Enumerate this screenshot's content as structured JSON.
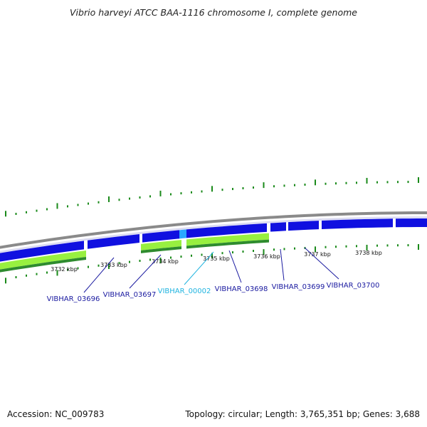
{
  "title": "Vibrio harveyi ATCC BAA-1116 chromosome I, complete genome",
  "footer": {
    "accession": "Accession: NC_009783",
    "stats": "Topology: circular; Length: 3,765,351 bp; Genes: 3,688"
  },
  "colors": {
    "backbone": "#8a8a8a",
    "cds_forward": "#1010e0",
    "cds_highlight": "#29a8ff",
    "feature_light": "#98f040",
    "feature_dark": "#2e8b2e",
    "ticks": "#1a8a1a",
    "label_normal": "#1a1aa0",
    "label_highlight": "#20b4e0"
  },
  "scale_labels": [
    "3732 kbp",
    "3733 kbp",
    "3734 kbp",
    "3735 kbp",
    "3736 kbp",
    "3737 kbp",
    "3738 kbp"
  ],
  "gene_labels": [
    {
      "name": "VIBHAR_03696",
      "highlight": false
    },
    {
      "name": "VIBHAR_03697",
      "highlight": false
    },
    {
      "name": "VIBHAR_00002",
      "highlight": true
    },
    {
      "name": "VIBHAR_03698",
      "highlight": false
    },
    {
      "name": "VIBHAR_03699",
      "highlight": false
    },
    {
      "name": "VIBHAR_03700",
      "highlight": false
    }
  ]
}
